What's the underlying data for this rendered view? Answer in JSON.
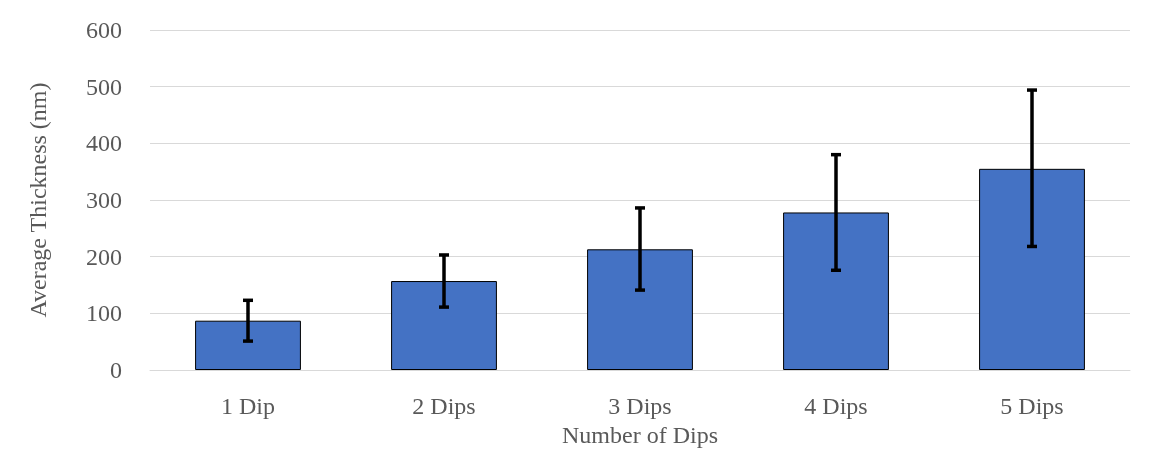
{
  "chart_data": {
    "type": "bar",
    "xlabel": "Number of Dips",
    "ylabel": "Average Thickness (nm)",
    "categories": [
      "1 Dip",
      "2 Dips",
      "3 Dips",
      "4 Dips",
      "5 Dips"
    ],
    "values": [
      87,
      157,
      213,
      278,
      355
    ],
    "errors": [
      [
        51,
        123
      ],
      [
        111,
        203
      ],
      [
        141,
        286
      ],
      [
        176,
        380
      ],
      [
        218,
        494
      ]
    ],
    "color": "#4472c4",
    "ylim": [
      0,
      600
    ],
    "yticks": [
      0,
      100,
      200,
      300,
      400,
      500,
      600
    ],
    "grid": "y"
  }
}
